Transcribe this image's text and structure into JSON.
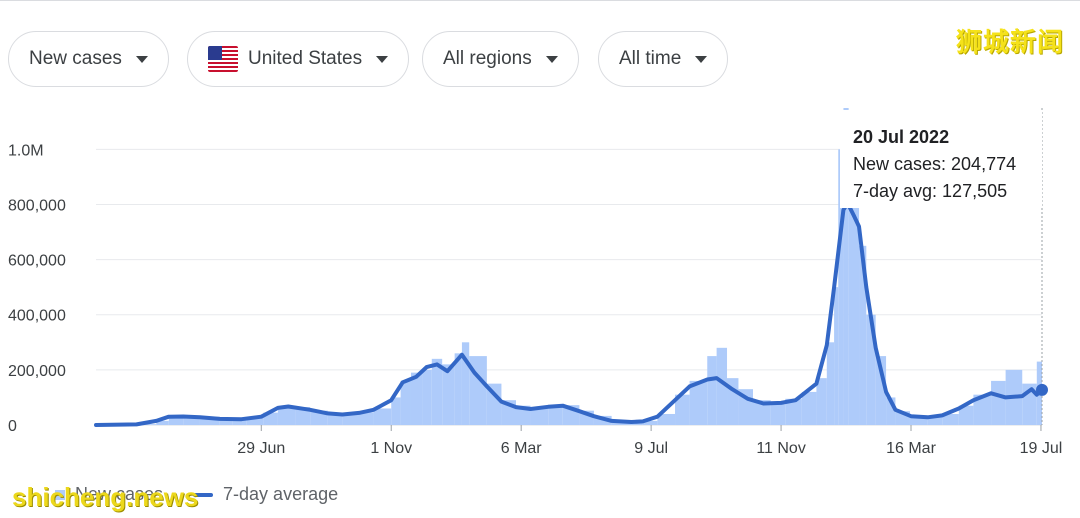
{
  "filters": {
    "metric": "New cases",
    "country": "United States",
    "region": "All regions",
    "period": "All time"
  },
  "watermarks": {
    "chinese": "狮城新闻",
    "english": "shicheng.news"
  },
  "tooltip": {
    "date": "20 Jul 2022",
    "new_cases": "New cases: 204,774",
    "avg": "7-day avg: 127,505"
  },
  "legend": {
    "bars": "New cases",
    "line": "7-day average"
  },
  "colors": {
    "bars": "#aecbfa",
    "line": "#3367c6",
    "grid": "#e8eaed"
  },
  "chart_data": {
    "type": "bar",
    "title": "",
    "xlabel": "",
    "ylabel": "",
    "ylim": [
      0,
      1150000
    ],
    "yticks": [
      {
        "value": 0,
        "label": "0"
      },
      {
        "value": 200000,
        "label": "200,000"
      },
      {
        "value": 400000,
        "label": "400,000"
      },
      {
        "value": 600000,
        "label": "600,000"
      },
      {
        "value": 800000,
        "label": "800,000"
      },
      {
        "value": 1000000,
        "label": "1.0M"
      }
    ],
    "xticks": [
      {
        "date": "2020-06-29",
        "label": "29 Jun"
      },
      {
        "date": "2020-11-01",
        "label": "1 Nov"
      },
      {
        "date": "2021-03-06",
        "label": "6 Mar"
      },
      {
        "date": "2021-07-09",
        "label": "9 Jul"
      },
      {
        "date": "2021-11-11",
        "label": "11 Nov"
      },
      {
        "date": "2022-03-16",
        "label": "16 Mar"
      },
      {
        "date": "2022-07-19",
        "label": "19 Jul"
      }
    ],
    "xlim": [
      "2020-01-22",
      "2022-07-20"
    ],
    "series": [
      {
        "name": "New cases",
        "type": "bar",
        "points": [
          [
            "2020-02-01",
            0
          ],
          [
            "2020-03-01",
            3000
          ],
          [
            "2020-03-20",
            15000
          ],
          [
            "2020-04-01",
            30000
          ],
          [
            "2020-04-15",
            33000
          ],
          [
            "2020-05-01",
            30000
          ],
          [
            "2020-05-20",
            23000
          ],
          [
            "2020-06-01",
            22000
          ],
          [
            "2020-06-15",
            25000
          ],
          [
            "2020-07-01",
            45000
          ],
          [
            "2020-07-15",
            68000
          ],
          [
            "2020-08-01",
            65000
          ],
          [
            "2020-08-15",
            52000
          ],
          [
            "2020-09-01",
            42000
          ],
          [
            "2020-09-15",
            40000
          ],
          [
            "2020-10-01",
            46000
          ],
          [
            "2020-10-15",
            60000
          ],
          [
            "2020-11-01",
            100000
          ],
          [
            "2020-11-10",
            160000
          ],
          [
            "2020-11-20",
            190000
          ],
          [
            "2020-12-01",
            200000
          ],
          [
            "2020-12-10",
            240000
          ],
          [
            "2020-12-20",
            220000
          ],
          [
            "2021-01-01",
            260000
          ],
          [
            "2021-01-08",
            300000
          ],
          [
            "2021-01-15",
            250000
          ],
          [
            "2021-02-01",
            150000
          ],
          [
            "2021-02-15",
            90000
          ],
          [
            "2021-03-01",
            70000
          ],
          [
            "2021-03-15",
            62000
          ],
          [
            "2021-04-01",
            68000
          ],
          [
            "2021-04-15",
            72000
          ],
          [
            "2021-05-01",
            52000
          ],
          [
            "2021-05-15",
            33000
          ],
          [
            "2021-06-01",
            15000
          ],
          [
            "2021-06-20",
            12000
          ],
          [
            "2021-07-01",
            15000
          ],
          [
            "2021-07-15",
            40000
          ],
          [
            "2021-08-01",
            110000
          ],
          [
            "2021-08-15",
            160000
          ],
          [
            "2021-09-01",
            250000
          ],
          [
            "2021-09-10",
            280000
          ],
          [
            "2021-09-20",
            170000
          ],
          [
            "2021-10-01",
            130000
          ],
          [
            "2021-10-15",
            90000
          ],
          [
            "2021-11-01",
            75000
          ],
          [
            "2021-11-15",
            95000
          ],
          [
            "2021-12-01",
            120000
          ],
          [
            "2021-12-15",
            170000
          ],
          [
            "2021-12-25",
            300000
          ],
          [
            "2022-01-01",
            500000
          ],
          [
            "2022-01-05",
            1000000
          ],
          [
            "2022-01-10",
            1150000
          ],
          [
            "2022-01-15",
            800000
          ],
          [
            "2022-01-25",
            650000
          ],
          [
            "2022-02-01",
            400000
          ],
          [
            "2022-02-10",
            250000
          ],
          [
            "2022-02-20",
            100000
          ],
          [
            "2022-03-01",
            50000
          ],
          [
            "2022-03-15",
            32000
          ],
          [
            "2022-04-01",
            30000
          ],
          [
            "2022-04-15",
            40000
          ],
          [
            "2022-05-01",
            70000
          ],
          [
            "2022-05-15",
            110000
          ],
          [
            "2022-06-01",
            160000
          ],
          [
            "2022-06-15",
            200000
          ],
          [
            "2022-07-01",
            150000
          ],
          [
            "2022-07-15",
            230000
          ],
          [
            "2022-07-20",
            204774
          ]
        ]
      },
      {
        "name": "7-day average",
        "type": "line",
        "points": [
          [
            "2020-01-22",
            0
          ],
          [
            "2020-03-01",
            2000
          ],
          [
            "2020-03-20",
            15000
          ],
          [
            "2020-04-01",
            30000
          ],
          [
            "2020-04-15",
            31000
          ],
          [
            "2020-05-01",
            28000
          ],
          [
            "2020-05-20",
            22000
          ],
          [
            "2020-06-10",
            21000
          ],
          [
            "2020-06-29",
            30000
          ],
          [
            "2020-07-15",
            62000
          ],
          [
            "2020-07-25",
            67000
          ],
          [
            "2020-08-15",
            55000
          ],
          [
            "2020-09-01",
            42000
          ],
          [
            "2020-09-15",
            38000
          ],
          [
            "2020-10-01",
            44000
          ],
          [
            "2020-10-15",
            55000
          ],
          [
            "2020-11-01",
            90000
          ],
          [
            "2020-11-12",
            155000
          ],
          [
            "2020-11-25",
            175000
          ],
          [
            "2020-12-05",
            210000
          ],
          [
            "2020-12-15",
            220000
          ],
          [
            "2020-12-25",
            195000
          ],
          [
            "2021-01-08",
            255000
          ],
          [
            "2021-01-20",
            190000
          ],
          [
            "2021-02-01",
            140000
          ],
          [
            "2021-02-15",
            85000
          ],
          [
            "2021-03-01",
            65000
          ],
          [
            "2021-03-15",
            58000
          ],
          [
            "2021-04-01",
            66000
          ],
          [
            "2021-04-15",
            70000
          ],
          [
            "2021-05-01",
            50000
          ],
          [
            "2021-05-15",
            32000
          ],
          [
            "2021-06-01",
            15000
          ],
          [
            "2021-06-20",
            11000
          ],
          [
            "2021-07-01",
            13000
          ],
          [
            "2021-07-15",
            30000
          ],
          [
            "2021-08-01",
            90000
          ],
          [
            "2021-08-15",
            140000
          ],
          [
            "2021-09-01",
            165000
          ],
          [
            "2021-09-10",
            170000
          ],
          [
            "2021-09-25",
            130000
          ],
          [
            "2021-10-10",
            95000
          ],
          [
            "2021-10-25",
            78000
          ],
          [
            "2021-11-11",
            80000
          ],
          [
            "2021-11-25",
            90000
          ],
          [
            "2021-12-05",
            120000
          ],
          [
            "2021-12-15",
            150000
          ],
          [
            "2021-12-25",
            290000
          ],
          [
            "2022-01-01",
            500000
          ],
          [
            "2022-01-10",
            780000
          ],
          [
            "2022-01-14",
            805000
          ],
          [
            "2022-01-20",
            760000
          ],
          [
            "2022-01-25",
            720000
          ],
          [
            "2022-02-01",
            500000
          ],
          [
            "2022-02-10",
            280000
          ],
          [
            "2022-02-20",
            120000
          ],
          [
            "2022-03-01",
            55000
          ],
          [
            "2022-03-16",
            32000
          ],
          [
            "2022-04-01",
            28000
          ],
          [
            "2022-04-15",
            35000
          ],
          [
            "2022-05-01",
            60000
          ],
          [
            "2022-05-15",
            90000
          ],
          [
            "2022-06-01",
            115000
          ],
          [
            "2022-06-15",
            100000
          ],
          [
            "2022-07-01",
            105000
          ],
          [
            "2022-07-10",
            130000
          ],
          [
            "2022-07-15",
            110000
          ],
          [
            "2022-07-20",
            127505
          ]
        ]
      }
    ]
  }
}
